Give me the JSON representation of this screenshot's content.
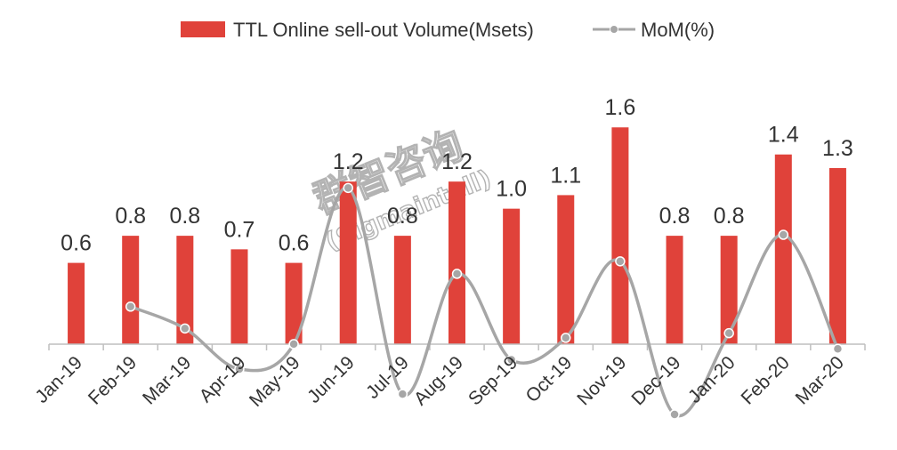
{
  "colors": {
    "bar": "#E0423A",
    "line": "#A6A6A6",
    "axis": "#BFBFBF",
    "text": "#333333"
  },
  "watermark": {
    "cn": "群智咨询",
    "en": "(Sigmaintell)"
  },
  "chart_data": {
    "type": "bar",
    "categories": [
      "Jan-19",
      "Feb-19",
      "Mar-19",
      "Apr-19",
      "May-19",
      "Jun-19",
      "Jul-19",
      "Aug-19",
      "Sep-19",
      "Oct-19",
      "Nov-19",
      "Dec-19",
      "Jan-20",
      "Feb-20",
      "Mar-20"
    ],
    "series": [
      {
        "name": "TTL Online sell-out Volume(Msets)",
        "type": "bar",
        "axis": "left",
        "values": [
          0.6,
          0.8,
          0.8,
          0.7,
          0.6,
          1.2,
          0.8,
          1.2,
          1.0,
          1.1,
          1.6,
          0.8,
          0.8,
          1.4,
          1.3
        ],
        "labels": [
          "0.6",
          "0.8",
          "0.8",
          "0.7",
          "0.6",
          "1.2",
          "0.8",
          "1.2",
          "1.0",
          "1.1",
          "1.6",
          "0.8",
          "0.8",
          "1.4",
          "1.3"
        ]
      },
      {
        "name": "MoM(%)",
        "type": "line",
        "axis": "right",
        "smooth": true,
        "values": [
          null,
          0.22,
          0.08,
          -0.18,
          -0.02,
          0.98,
          -0.34,
          0.43,
          -0.12,
          0.02,
          0.51,
          -0.47,
          0.05,
          0.68,
          -0.05
        ]
      }
    ],
    "ylim_left": [
      0,
      1.7
    ],
    "ylim_right": [
      -0.55,
      1.5
    ],
    "legend": "top-center",
    "grid": false
  }
}
